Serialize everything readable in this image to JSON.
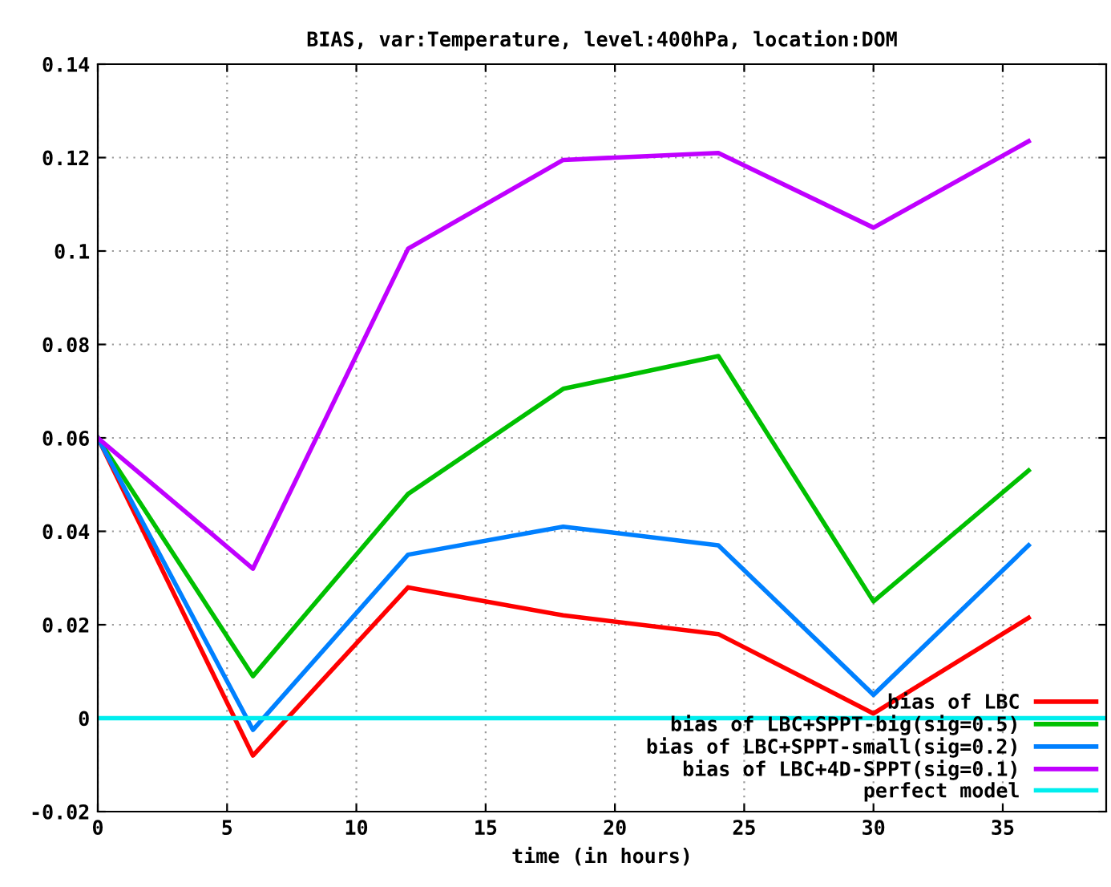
{
  "chart_data": {
    "type": "line",
    "title": "BIAS, var:Temperature, level:400hPa, location:DOM",
    "xlabel": "time (in hours)",
    "x": [
      0,
      6,
      12,
      18,
      24,
      30,
      36
    ],
    "series": [
      {
        "name": "bias of LBC",
        "color": "#ff0000",
        "values": [
          0.06,
          -0.008,
          0.028,
          0.022,
          0.018,
          0.001,
          0.0215
        ]
      },
      {
        "name": "bias of LBC+SPPT-big(sig=0.5)",
        "color": "#00c000",
        "values": [
          0.06,
          0.009,
          0.048,
          0.0705,
          0.0775,
          0.025,
          0.053
        ]
      },
      {
        "name": "bias of LBC+SPPT-small(sig=0.2)",
        "color": "#0080ff",
        "values": [
          0.06,
          -0.0025,
          0.035,
          0.041,
          0.037,
          0.005,
          0.037
        ]
      },
      {
        "name": "bias of LBC+4D-SPPT(sig=0.1)",
        "color": "#c000ff",
        "values": [
          0.06,
          0.032,
          0.1005,
          0.1195,
          0.121,
          0.105,
          0.1235
        ]
      },
      {
        "name": "perfect model",
        "color": "#00eeee",
        "x": [
          0,
          39
        ],
        "values": [
          0,
          0
        ]
      }
    ],
    "xlim": [
      0,
      39
    ],
    "ylim": [
      -0.02,
      0.14
    ],
    "xticks": [
      0,
      5,
      10,
      15,
      20,
      25,
      30,
      35
    ],
    "yticks": [
      -0.02,
      0,
      0.02,
      0.04,
      0.06,
      0.08,
      0.1,
      0.12,
      0.14
    ],
    "grid": true,
    "legend": "bottom right",
    "marker": "none",
    "line_style": "solid"
  }
}
